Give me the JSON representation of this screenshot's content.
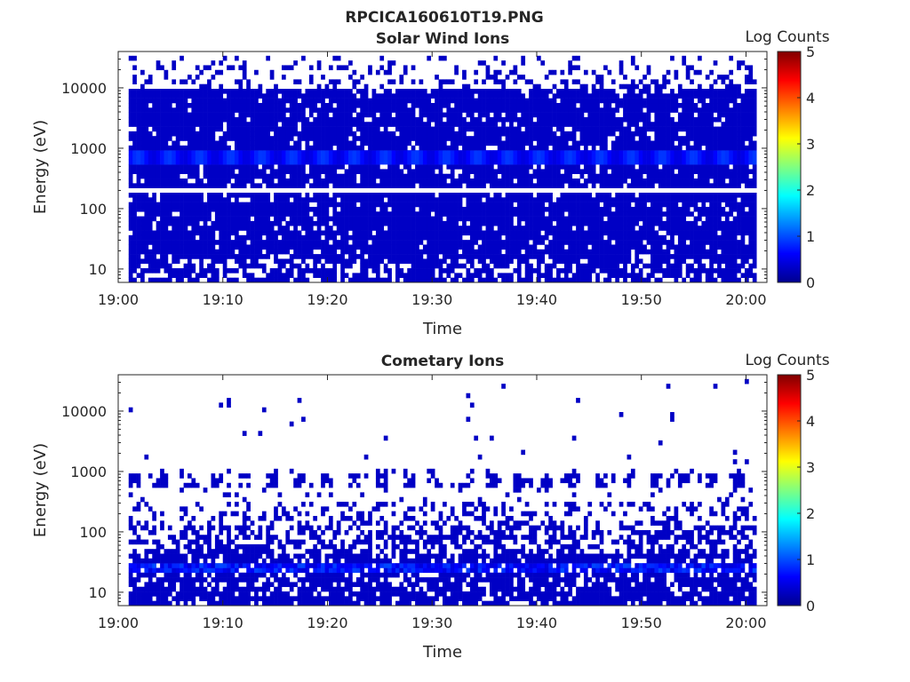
{
  "figure_title": "RPCICA160610T19.PNG",
  "colors": {
    "background": "#ffffff",
    "dominant_counts": "#00008f",
    "axis": "#262626"
  },
  "colormap": "jet",
  "chart_data": [
    {
      "type": "heatmap",
      "title": "Solar Wind Ions",
      "xlabel": "Time",
      "ylabel": "Energy (eV)",
      "yscale": "log",
      "ylim": [
        6,
        40000
      ],
      "xlim": [
        "19:00",
        "20:02"
      ],
      "x_ticks": [
        "19:00",
        "19:10",
        "19:20",
        "19:30",
        "19:40",
        "19:50",
        "20:00"
      ],
      "y_ticks": [
        "10",
        "100",
        "1000",
        "10000"
      ],
      "colorbar": {
        "label": "Log Counts",
        "range": [
          0,
          5
        ],
        "ticks": [
          "0",
          "1",
          "2",
          "3",
          "4",
          "5"
        ]
      },
      "data_time_range": [
        "19:01",
        "20:01"
      ],
      "value_summary": {
        "background_log_counts": 0.3,
        "peak_band_energy_ev": [
          500,
          900
        ],
        "peak_band_log_counts": 0.9,
        "empty_band_energy_ev": 195,
        "sparse_above_energy_ev": 10000
      }
    },
    {
      "type": "heatmap",
      "title": "Cometary Ions",
      "xlabel": "Time",
      "ylabel": "Energy (eV)",
      "yscale": "log",
      "ylim": [
        6,
        40000
      ],
      "xlim": [
        "19:00",
        "20:02"
      ],
      "x_ticks": [
        "19:00",
        "19:10",
        "19:20",
        "19:30",
        "19:40",
        "19:50",
        "20:00"
      ],
      "y_ticks": [
        "10",
        "100",
        "1000",
        "10000"
      ],
      "colorbar": {
        "label": "Log Counts",
        "range": [
          0,
          5
        ],
        "ticks": [
          "0",
          "1",
          "2",
          "3",
          "4",
          "5"
        ]
      },
      "data_time_range": [
        "19:01",
        "20:01"
      ],
      "value_summary": {
        "background_log_counts": 0.3,
        "peak_band_energy_ev": [
          20,
          30
        ],
        "peak_band_log_counts": 1.0,
        "upper_patches_energy_ev": [
          550,
          900
        ],
        "sparse_above_energy_ev": 1200
      }
    }
  ]
}
